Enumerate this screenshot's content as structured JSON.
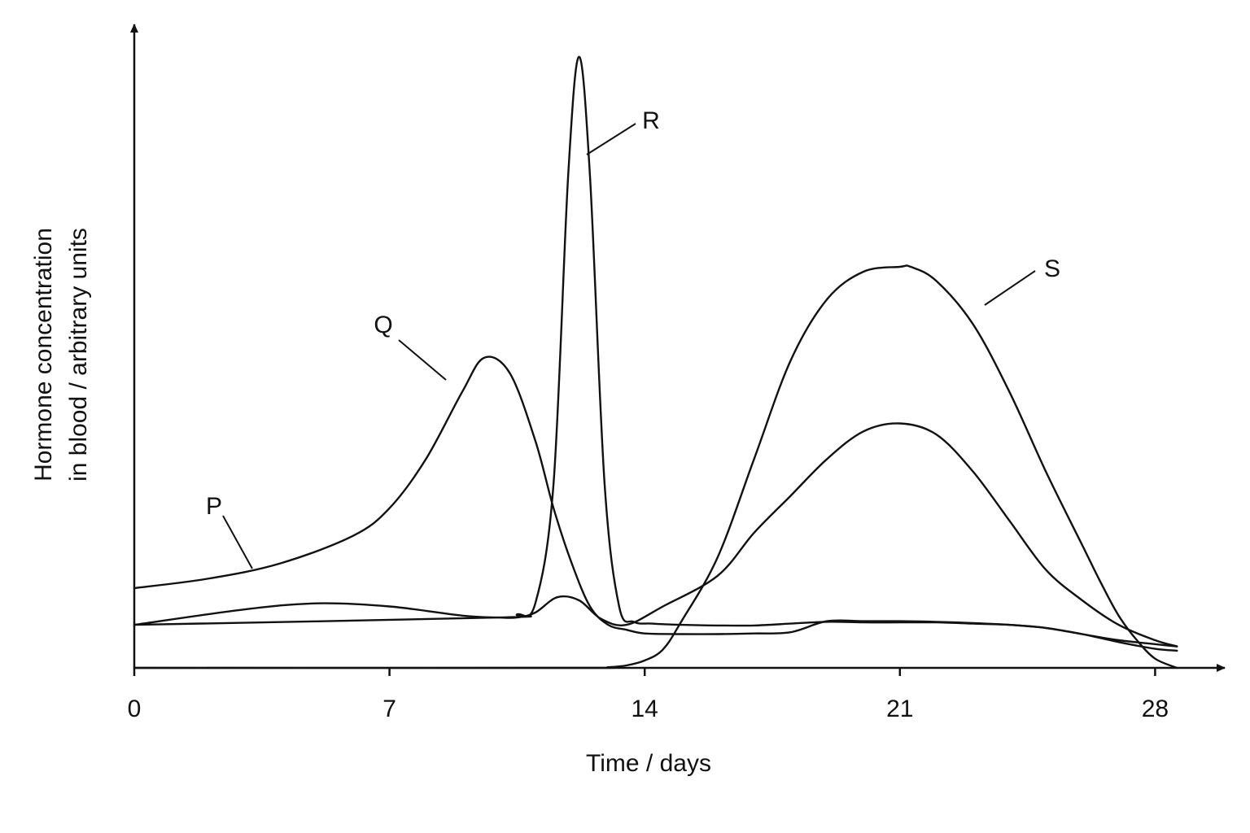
{
  "chart_data": {
    "type": "line",
    "xlabel": "Time / days",
    "ylabel_lines": [
      "Hormone concentration",
      "in blood / arbitrary units"
    ],
    "xlim": [
      0,
      29
    ],
    "ylim": [
      0,
      100
    ],
    "x_ticks": [
      0,
      7,
      14,
      21,
      28
    ],
    "y_ticks": [],
    "grid": false,
    "legend": "none",
    "series": [
      {
        "name": "P",
        "x": [
          0,
          2,
          4,
          6,
          7,
          8,
          9,
          9.6,
          10.3,
          11,
          11.5,
          12,
          12.5,
          13,
          13.5,
          14,
          15,
          16,
          17,
          18,
          19,
          20,
          21,
          22,
          23,
          24,
          25,
          26,
          27,
          28.6
        ],
        "y": [
          13,
          14.5,
          17,
          21.5,
          26,
          34,
          45,
          50.5,
          48,
          37,
          26,
          17,
          10,
          7,
          6.2,
          5.6,
          5.5,
          5.5,
          5.6,
          5.8,
          7.6,
          7.6,
          7.6,
          7.5,
          7.3,
          7,
          6.5,
          5.5,
          4.5,
          3.5
        ]
      },
      {
        "name": "Q",
        "x": [
          0,
          3,
          5,
          7,
          9,
          10,
          10.5,
          11,
          11.6,
          12.2,
          12.8,
          13.5,
          14.5,
          16,
          17,
          18,
          19,
          20,
          21,
          22,
          23,
          24,
          25,
          26,
          27,
          28,
          28.6
        ],
        "y": [
          7,
          9.5,
          10.5,
          10,
          8.5,
          8.2,
          8.2,
          9,
          11.5,
          11,
          8,
          7,
          10,
          15,
          22,
          28,
          34,
          38.5,
          39.8,
          38,
          32,
          24,
          16,
          11,
          7,
          4.5,
          3.5
        ]
      },
      {
        "name": "R",
        "x": [
          0,
          10,
          10.5,
          11,
          11.5,
          11.9,
          12.2,
          12.5,
          12.9,
          13.3,
          13.7,
          14.2,
          15,
          16,
          17,
          18,
          19,
          20,
          21,
          22,
          23,
          24,
          25,
          26,
          27,
          28,
          28.6
        ],
        "y": [
          7,
          8.2,
          8.7,
          10.5,
          30,
          80,
          99.5,
          80,
          30,
          10,
          7.5,
          7.2,
          7,
          6.9,
          6.9,
          7.2,
          7.5,
          7.4,
          7.4,
          7.4,
          7.2,
          7,
          6.5,
          5.5,
          4.2,
          3.1,
          2.8
        ]
      },
      {
        "name": "S",
        "x": [
          0,
          12,
          13,
          13.5,
          14,
          14.5,
          15,
          16,
          17,
          18,
          19,
          20,
          21,
          21.3,
          22,
          23,
          24,
          25,
          26,
          26.5,
          27,
          27.5,
          28,
          28.6
        ],
        "y": [
          0,
          0,
          0.1,
          0.4,
          1.2,
          3,
          7.5,
          18,
          34,
          50,
          60,
          64.5,
          65.3,
          65.3,
          63,
          56,
          45,
          32,
          20,
          14,
          8.5,
          4.5,
          1.5,
          0
        ]
      }
    ],
    "labels": [
      "P",
      "Q",
      "R",
      "S"
    ]
  }
}
